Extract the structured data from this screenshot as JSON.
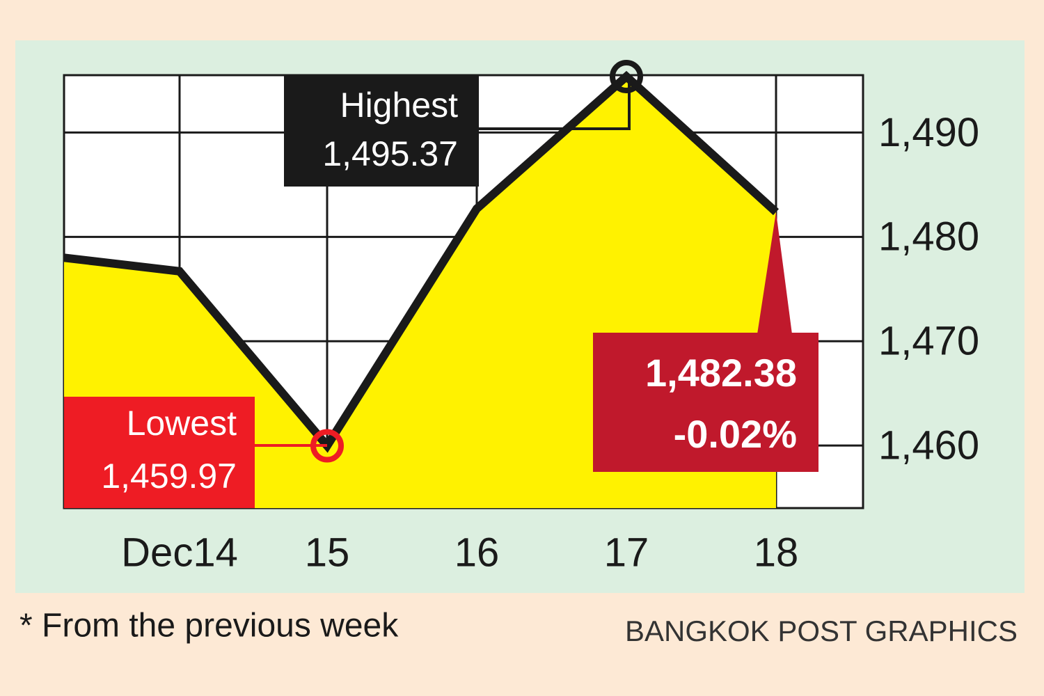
{
  "chart_data": {
    "type": "area",
    "categories": [
      null,
      "Dec14",
      "15",
      "16",
      "17",
      "18"
    ],
    "values": [
      1478,
      1476.7,
      1459.97,
      1482.7,
      1495.37,
      1482.38
    ],
    "value_labels": [
      null,
      null,
      "1,459.97",
      null,
      "1,495.37",
      "1,482.38"
    ],
    "annotations": [
      "Lowest",
      "Highest",
      "-0.02%"
    ],
    "color": "#1a1a1a",
    "area_color": "#fff200",
    "ylim": [
      1454,
      1495.5
    ],
    "yticks": [
      {
        "value": 1460,
        "label": "1,460"
      },
      {
        "value": 1470,
        "label": "1,470"
      },
      {
        "value": 1480,
        "label": "1,480"
      },
      {
        "value": 1490,
        "label": "1,490"
      }
    ],
    "grid": true,
    "footnote": "* From the previous week",
    "source": "BANGKOK POST GRAPHICS"
  }
}
